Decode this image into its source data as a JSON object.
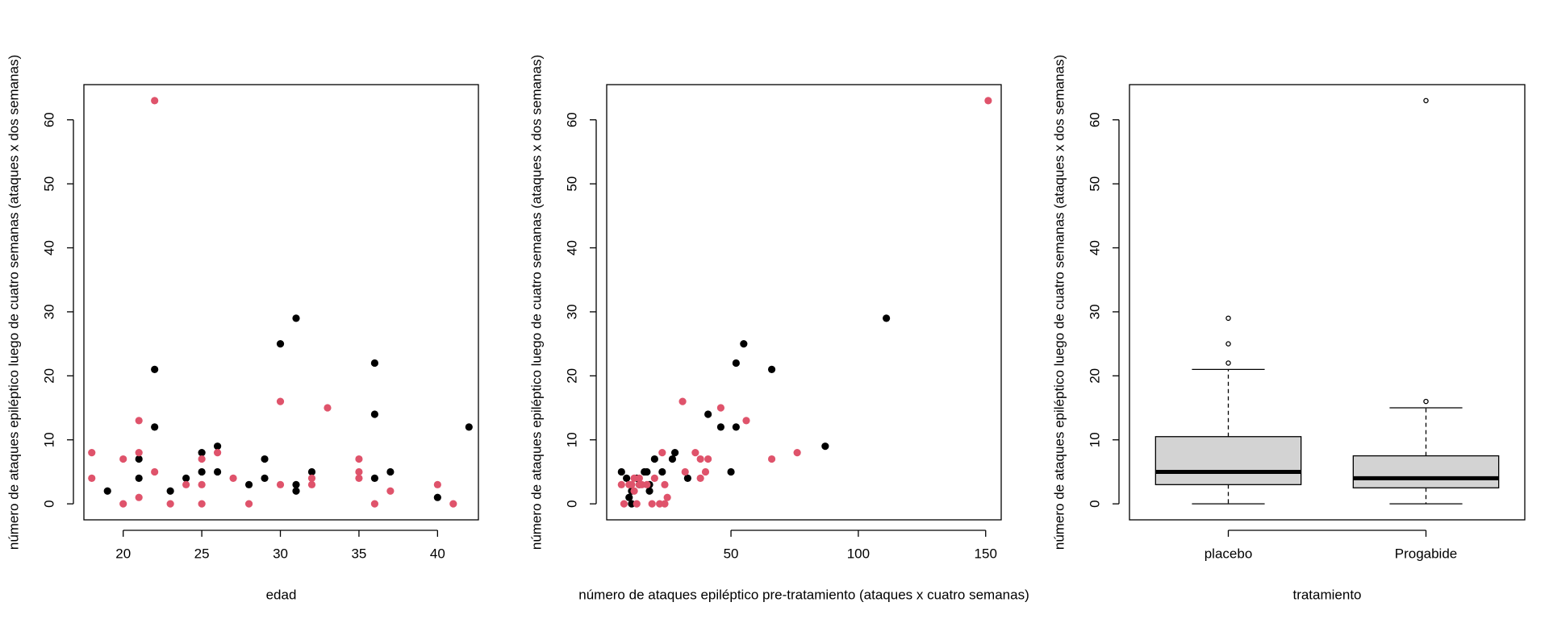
{
  "colors": {
    "black_series": "#000000",
    "red_series": "#DF536B",
    "box_fill": "#D3D3D3"
  },
  "ylabel": "número de ataques epiléptico luego de cuatro semanas (ataques x dos semanas)",
  "chart_data": [
    {
      "type": "scatter",
      "xlabel": "edad",
      "ylabel": "número de ataques epiléptico luego de cuatro semanas (ataques x dos semanas)",
      "xlim": [
        17.5,
        42.6
      ],
      "ylim": [
        -2.5,
        65.5
      ],
      "xticks": [
        20,
        25,
        30,
        35,
        40
      ],
      "yticks": [
        0,
        10,
        20,
        30,
        40,
        50,
        60
      ],
      "series": [
        {
          "color": "#000000",
          "points": [
            [
              19,
              2
            ],
            [
              21,
              7
            ],
            [
              21,
              4
            ],
            [
              22,
              21
            ],
            [
              22,
              12
            ],
            [
              23,
              2
            ],
            [
              24,
              4
            ],
            [
              25,
              8
            ],
            [
              25,
              5
            ],
            [
              26,
              9
            ],
            [
              26,
              5
            ],
            [
              28,
              3
            ],
            [
              29,
              7
            ],
            [
              29,
              4
            ],
            [
              30,
              25
            ],
            [
              31,
              29
            ],
            [
              31,
              3
            ],
            [
              31,
              2
            ],
            [
              32,
              5
            ],
            [
              36,
              22
            ],
            [
              36,
              14
            ],
            [
              36,
              4
            ],
            [
              37,
              5
            ],
            [
              40,
              1
            ],
            [
              42,
              12
            ]
          ]
        },
        {
          "color": "#DF536B",
          "points": [
            [
              18,
              8
            ],
            [
              18,
              4
            ],
            [
              20,
              7
            ],
            [
              20,
              0
            ],
            [
              21,
              13
            ],
            [
              21,
              8
            ],
            [
              21,
              1
            ],
            [
              22,
              63
            ],
            [
              22,
              5
            ],
            [
              23,
              0
            ],
            [
              24,
              3
            ],
            [
              25,
              7
            ],
            [
              25,
              3
            ],
            [
              25,
              0
            ],
            [
              26,
              8
            ],
            [
              27,
              4
            ],
            [
              28,
              0
            ],
            [
              30,
              16
            ],
            [
              30,
              3
            ],
            [
              32,
              4
            ],
            [
              32,
              3
            ],
            [
              33,
              15
            ],
            [
              35,
              7
            ],
            [
              35,
              5
            ],
            [
              35,
              4
            ],
            [
              36,
              0
            ],
            [
              37,
              2
            ],
            [
              40,
              3
            ],
            [
              41,
              0
            ]
          ]
        }
      ]
    },
    {
      "type": "scatter",
      "xlabel": "número de ataques epiléptico pre-tratamiento (ataques x cuatro semanas)",
      "ylabel": "número de ataques epiléptico luego de cuatro semanas (ataques x dos semanas)",
      "xlim": [
        1.2,
        156.1
      ],
      "ylim": [
        -2.5,
        65.5
      ],
      "xticks": [
        50,
        100,
        150
      ],
      "yticks": [
        0,
        10,
        20,
        30,
        40,
        50,
        60
      ],
      "series": [
        {
          "color": "#000000",
          "points": [
            [
              7,
              5
            ],
            [
              9,
              4
            ],
            [
              10,
              1
            ],
            [
              11,
              0
            ],
            [
              11,
              2
            ],
            [
              13,
              4
            ],
            [
              14,
              3
            ],
            [
              16,
              5
            ],
            [
              17,
              5
            ],
            [
              18,
              3
            ],
            [
              18,
              2
            ],
            [
              20,
              7
            ],
            [
              23,
              5
            ],
            [
              27,
              7
            ],
            [
              28,
              8
            ],
            [
              33,
              4
            ],
            [
              41,
              14
            ],
            [
              46,
              12
            ],
            [
              50,
              5
            ],
            [
              52,
              22
            ],
            [
              52,
              12
            ],
            [
              55,
              25
            ],
            [
              66,
              21
            ],
            [
              87,
              9
            ],
            [
              111,
              29
            ]
          ]
        },
        {
          "color": "#DF536B",
          "points": [
            [
              7,
              3
            ],
            [
              8,
              0
            ],
            [
              10,
              3
            ],
            [
              11,
              3
            ],
            [
              12,
              4
            ],
            [
              12,
              2
            ],
            [
              13,
              0
            ],
            [
              14,
              3
            ],
            [
              14,
              4
            ],
            [
              15,
              3
            ],
            [
              17,
              3
            ],
            [
              19,
              0
            ],
            [
              20,
              4
            ],
            [
              22,
              0
            ],
            [
              23,
              8
            ],
            [
              24,
              3
            ],
            [
              24,
              0
            ],
            [
              25,
              1
            ],
            [
              31,
              16
            ],
            [
              32,
              5
            ],
            [
              36,
              8
            ],
            [
              38,
              4
            ],
            [
              38,
              7
            ],
            [
              40,
              5
            ],
            [
              41,
              7
            ],
            [
              46,
              15
            ],
            [
              56,
              13
            ],
            [
              66,
              7
            ],
            [
              76,
              8
            ],
            [
              151,
              63
            ]
          ]
        }
      ]
    },
    {
      "type": "box",
      "xlabel": "tratamiento",
      "ylabel": "número de ataques epiléptico luego de cuatro semanas (ataques x dos semanas)",
      "categories": [
        "placebo",
        "Progabide"
      ],
      "ylim": [
        -2.5,
        65.5
      ],
      "yticks": [
        0,
        10,
        20,
        30,
        40,
        50,
        60
      ],
      "boxes": [
        {
          "label": "placebo",
          "min": 0,
          "q1": 3,
          "median": 5,
          "q3": 10.5,
          "max": 21,
          "outliers": [
            22,
            25,
            29
          ]
        },
        {
          "label": "Progabide",
          "min": 0,
          "q1": 2.5,
          "median": 4,
          "q3": 7.5,
          "max": 15,
          "outliers": [
            16,
            63
          ]
        }
      ]
    }
  ]
}
